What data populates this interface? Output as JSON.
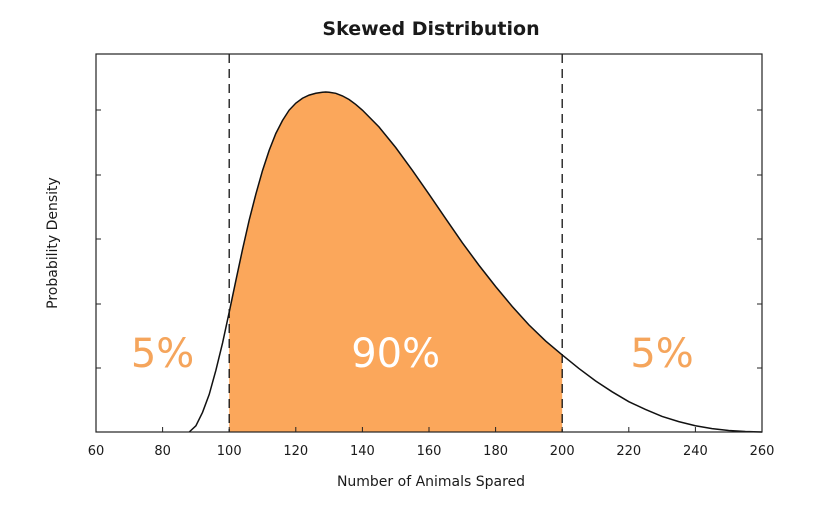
{
  "chart_data": {
    "type": "area",
    "title": "Skewed Distribution",
    "xlabel": "Number of Animals Spared",
    "ylabel": "Probability Density",
    "xlim": [
      60,
      260
    ],
    "xticks": [
      60,
      80,
      100,
      120,
      140,
      160,
      180,
      200,
      220,
      240,
      260
    ],
    "ytick_count": 6,
    "y_tick_labels_shown": false,
    "grid": false,
    "curve": {
      "x": [
        88,
        90,
        92,
        94,
        96,
        98,
        100,
        102,
        104,
        106,
        108,
        110,
        112,
        114,
        116,
        118,
        120,
        122,
        124,
        126,
        128,
        129,
        130,
        132,
        134,
        136,
        138,
        140,
        145,
        150,
        155,
        160,
        165,
        170,
        175,
        180,
        185,
        190,
        195,
        200,
        205,
        210,
        215,
        220,
        225,
        230,
        235,
        240,
        245,
        250,
        255,
        260
      ],
      "y": [
        0.0,
        0.0024,
        0.0076,
        0.0145,
        0.0238,
        0.0343,
        0.0462,
        0.0584,
        0.0704,
        0.0817,
        0.0917,
        0.1008,
        0.1086,
        0.1151,
        0.1201,
        0.1241,
        0.1268,
        0.1287,
        0.1299,
        0.1306,
        0.131,
        0.1311,
        0.131,
        0.1306,
        0.1296,
        0.1282,
        0.1263,
        0.1241,
        0.1176,
        0.1097,
        0.1009,
        0.0917,
        0.0823,
        0.073,
        0.0643,
        0.0561,
        0.0484,
        0.0413,
        0.0351,
        0.0297,
        0.0245,
        0.0197,
        0.0155,
        0.0117,
        0.0087,
        0.006,
        0.004,
        0.0024,
        0.0013,
        0.0006,
        0.0002,
        0.0
      ]
    },
    "ylim": [
      0,
      0.1311
    ],
    "shaded_range": [
      100,
      200
    ],
    "cutoffs": [
      100,
      200
    ],
    "regions": [
      {
        "label": "5%",
        "x": 80,
        "color": "#f5a55c"
      },
      {
        "label": "90%",
        "x": 150,
        "color": "#ffffff"
      },
      {
        "label": "5%",
        "x": 230,
        "color": "#f5a55c"
      }
    ],
    "colors": {
      "fill": "#fba75b",
      "line": "#111111",
      "axis": "#222222"
    }
  }
}
